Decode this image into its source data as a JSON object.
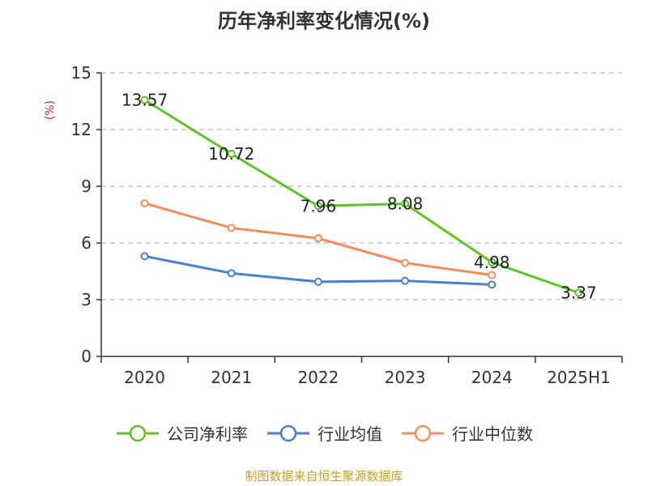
{
  "page": {
    "title": "历年净利率变化情况(%)",
    "unit_label": "(%)",
    "source": "制图数据来自恒生聚源数据库"
  },
  "chart_data": {
    "type": "line",
    "title": "历年净利率变化情况(%)",
    "ylabel": "(%)",
    "categories": [
      "2020",
      "2021",
      "2022",
      "2023",
      "2024",
      "2025H1"
    ],
    "ylim": [
      0,
      15
    ],
    "yticks": [
      0,
      3,
      6,
      9,
      12,
      15
    ],
    "grid": true,
    "legend_position": "bottom",
    "series": [
      {
        "name": "公司净利率",
        "color": "#5ec423",
        "values": [
          13.57,
          10.72,
          7.96,
          8.08,
          4.98,
          3.37
        ],
        "labels": [
          "13.57",
          "10.72",
          "7.96",
          "8.08",
          "4.98",
          "3.37"
        ]
      },
      {
        "name": "行业均值",
        "color": "#4a7fd4",
        "values": [
          5.3,
          4.4,
          3.95,
          4.0,
          3.8,
          null
        ]
      },
      {
        "name": "行业中位数",
        "color": "#f58c5a",
        "values": [
          8.1,
          6.8,
          6.25,
          4.95,
          4.3,
          null
        ]
      }
    ]
  }
}
